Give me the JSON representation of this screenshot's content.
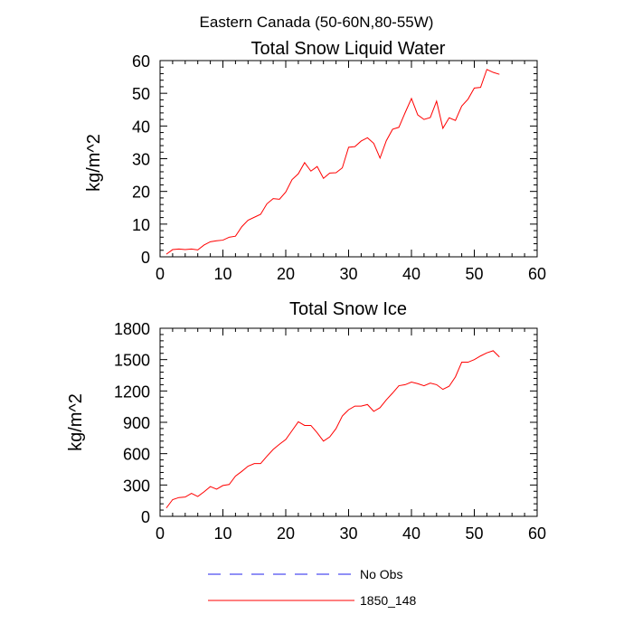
{
  "figure": {
    "title": "Eastern Canada (50-60N,80-55W)"
  },
  "chart_data": [
    {
      "type": "line",
      "title": "Total Snow Liquid Water",
      "xlabel": "",
      "ylabel": "kg/m^2",
      "xlim": [
        0,
        60
      ],
      "ylim": [
        0,
        60
      ],
      "xticks": [
        0,
        10,
        20,
        30,
        40,
        50,
        60
      ],
      "yticks": [
        0,
        10,
        20,
        30,
        40,
        50,
        60
      ],
      "x_minor_step": 2,
      "y_minor_step": 2,
      "grid": false,
      "series": [
        {
          "name": "1850_148",
          "color": "#ff0000",
          "x": [
            1,
            2,
            3,
            4,
            5,
            6,
            7,
            8,
            9,
            10,
            11,
            12,
            13,
            14,
            15,
            16,
            17,
            18,
            19,
            20,
            21,
            22,
            23,
            24,
            25,
            26,
            27,
            28,
            29,
            30,
            31,
            32,
            33,
            34,
            35,
            36,
            37,
            38,
            39,
            40,
            41,
            42,
            43,
            44,
            45,
            46,
            47,
            48,
            49,
            50,
            51,
            52,
            53,
            54
          ],
          "values": [
            0.8,
            2.2,
            2.4,
            2.2,
            2.4,
            2.1,
            3.6,
            4.6,
            4.9,
            5.1,
            6.0,
            6.3,
            9.2,
            11.2,
            12.1,
            13.0,
            16.2,
            17.8,
            17.6,
            19.8,
            23.6,
            25.4,
            28.8,
            26.2,
            27.6,
            24.0,
            25.6,
            25.7,
            27.2,
            33.5,
            33.7,
            35.4,
            36.4,
            34.7,
            30.2,
            35.5,
            39.0,
            39.6,
            44.1,
            48.4,
            43.4,
            42.0,
            42.6,
            47.6,
            39.3,
            42.5,
            41.7,
            46.1,
            48.2,
            51.6,
            51.8,
            57.3,
            56.4,
            55.8
          ]
        }
      ]
    },
    {
      "type": "line",
      "title": "Total Snow Ice",
      "xlabel": "",
      "ylabel": "kg/m^2",
      "xlim": [
        0,
        60
      ],
      "ylim": [
        0,
        1800
      ],
      "xticks": [
        0,
        10,
        20,
        30,
        40,
        50,
        60
      ],
      "yticks": [
        0,
        300,
        600,
        900,
        1200,
        1500,
        1800
      ],
      "x_minor_step": 2,
      "y_minor_step": 60,
      "grid": false,
      "series": [
        {
          "name": "1850_148",
          "color": "#ff0000",
          "x": [
            1,
            2,
            3,
            4,
            5,
            6,
            7,
            8,
            9,
            10,
            11,
            12,
            13,
            14,
            15,
            16,
            17,
            18,
            19,
            20,
            21,
            22,
            23,
            24,
            25,
            26,
            27,
            28,
            29,
            30,
            31,
            32,
            33,
            34,
            35,
            36,
            37,
            38,
            39,
            40,
            41,
            42,
            43,
            44,
            45,
            46,
            47,
            48,
            49,
            50,
            51,
            52,
            53,
            54
          ],
          "values": [
            80,
            160,
            180,
            185,
            220,
            190,
            235,
            285,
            260,
            295,
            305,
            385,
            430,
            480,
            505,
            505,
            575,
            640,
            690,
            735,
            820,
            905,
            870,
            870,
            800,
            720,
            760,
            840,
            960,
            1020,
            1055,
            1055,
            1070,
            1005,
            1040,
            1115,
            1180,
            1250,
            1260,
            1285,
            1270,
            1250,
            1275,
            1260,
            1215,
            1245,
            1335,
            1475,
            1475,
            1500,
            1535,
            1565,
            1585,
            1525
          ]
        }
      ]
    }
  ],
  "legend": {
    "items": [
      {
        "label": "No Obs",
        "color": "#2222ee",
        "style": "dashed"
      },
      {
        "label": "1850_148",
        "color": "#ff0000",
        "style": "solid"
      }
    ]
  }
}
